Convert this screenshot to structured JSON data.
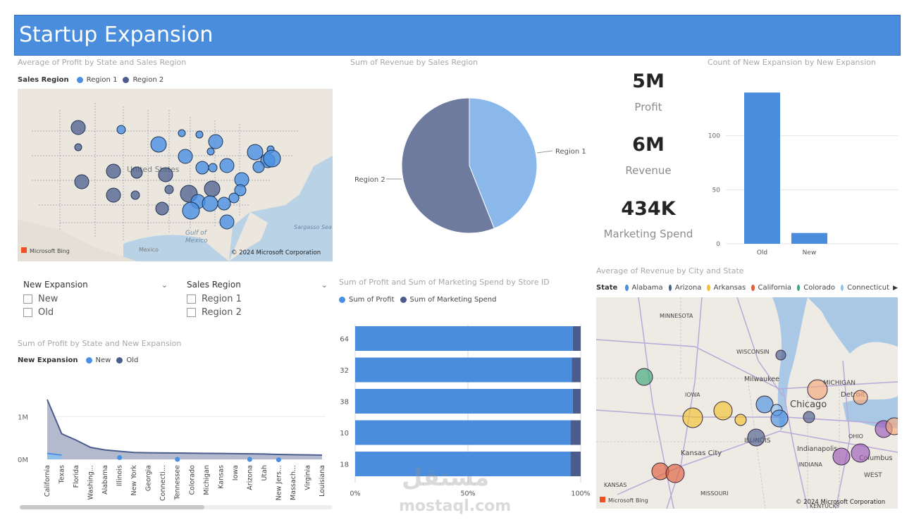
{
  "header": {
    "title": "Startup Expansion"
  },
  "map1": {
    "title": "Average of Profit by State and Sales Region",
    "legend_title": "Sales Region",
    "legend": [
      {
        "name": "Region 1",
        "color": "#4a90e2"
      },
      {
        "name": "Region 2",
        "color": "#4b5d8c"
      }
    ],
    "labels": {
      "country": "United States",
      "gulf": "Gulf of\nMexico",
      "sea": "Sargasso Sea",
      "mexico": "Mexico"
    },
    "bing": "Microsoft Bing",
    "copyright": "© 2024 Microsoft Corporation"
  },
  "pie": {
    "title": "Sum of Revenue by Sales Region",
    "label1": "Region 1",
    "label2": "Region 2"
  },
  "cards": [
    {
      "value": "5M",
      "label": "Profit"
    },
    {
      "value": "6M",
      "label": "Revenue"
    },
    {
      "value": "434K",
      "label": "Marketing Spend"
    }
  ],
  "colchart": {
    "title": "Count of New Expansion by New Expansion"
  },
  "slicers": {
    "expansion": {
      "title": "New Expansion",
      "items": [
        "New",
        "Old"
      ]
    },
    "region": {
      "title": "Sales Region",
      "items": [
        "Region 1",
        "Region 2"
      ]
    }
  },
  "area": {
    "title": "Sum of Profit by State and New Expansion",
    "legend_title": "New Expansion",
    "legend": [
      {
        "name": "New",
        "color": "#4a90e2"
      },
      {
        "name": "Old",
        "color": "#4b5d8c"
      }
    ]
  },
  "stacked": {
    "title": "Sum of Profit and Sum of Marketing Spend by Store ID",
    "legend": [
      {
        "name": "Sum of Profit",
        "color": "#4a90e2"
      },
      {
        "name": "Sum of Marketing Spend",
        "color": "#4b5d8c"
      }
    ]
  },
  "map2": {
    "title": "Average of Revenue by City and State",
    "legend_title": "State",
    "legend": [
      {
        "name": "Alabama",
        "color": "#4a90e2"
      },
      {
        "name": "Arizona",
        "color": "#4b5d8c"
      },
      {
        "name": "Arkansas",
        "color": "#f2c12e"
      },
      {
        "name": "California",
        "color": "#e0603a"
      },
      {
        "name": "Colorado",
        "color": "#3aa876"
      },
      {
        "name": "Connecticut",
        "color": "#8cc4f0"
      }
    ],
    "places": [
      "MINNESOTA",
      "WISCONSIN",
      "MICHIGAN",
      "IOWA",
      "Milwaukee",
      "Chicago",
      "Detroit",
      "ILLINOIS",
      "OHIO",
      "Indianapolis",
      "INDIANA",
      "Columbus",
      "Kansas City",
      "KANSAS",
      "MISSOURI",
      "KENTUCKY",
      "WEST"
    ],
    "bing": "Microsoft Bing",
    "copyright": "© 2024 Microsoft Corporation"
  },
  "watermark": {
    "arabic": "مستقل",
    "latin": "mostaql.com"
  },
  "chart_data": [
    {
      "type": "pie",
      "title": "Sum of Revenue by Sales Region",
      "categories": [
        "Region 1",
        "Region 2"
      ],
      "values": [
        44,
        56
      ],
      "colors": [
        "#8ab8ea",
        "#6e7b9e"
      ]
    },
    {
      "type": "bar",
      "title": "Count of New Expansion by New Expansion",
      "categories": [
        "Old",
        "New"
      ],
      "values": [
        140,
        10
      ],
      "ylim": [
        0,
        150
      ],
      "yticks": [
        0,
        50,
        100
      ],
      "color": "#4a8ddc"
    },
    {
      "type": "area",
      "title": "Sum of Profit by State and New Expansion",
      "categories": [
        "California",
        "Texas",
        "Florida",
        "Washing...",
        "Alabama",
        "Illinois",
        "New York",
        "Georgia",
        "Connecti...",
        "Tennessee",
        "Colorado",
        "Michigan",
        "Kansas",
        "Iowa",
        "Arizona",
        "Utah",
        "New Jers...",
        "Massach...",
        "Virginia",
        "Louisiana"
      ],
      "series": [
        {
          "name": "Old",
          "values": [
            1400000,
            600000,
            450000,
            280000,
            220000,
            190000,
            160000,
            155000,
            150000,
            148000,
            145000,
            140000,
            138000,
            135000,
            130000,
            125000,
            115000,
            110000,
            105000,
            100000
          ]
        },
        {
          "name": "New",
          "values": [
            140000,
            100000,
            0,
            0,
            0,
            90000,
            0,
            0,
            0,
            50000,
            0,
            0,
            0,
            0,
            50000,
            0,
            40000,
            0,
            0,
            0
          ]
        }
      ],
      "yticks": [
        "0M",
        "1M"
      ],
      "ylim": [
        0,
        1600000
      ]
    },
    {
      "type": "bar",
      "orientation": "horizontal-100%-stacked",
      "title": "Sum of Profit and Sum of Marketing Spend by Store ID",
      "categories": [
        "64",
        "32",
        "38",
        "10",
        "18"
      ],
      "series": [
        {
          "name": "Sum of Profit",
          "values": [
            96.5,
            96,
            96.5,
            95.5,
            95.5
          ]
        },
        {
          "name": "Sum of Marketing Spend",
          "values": [
            3.5,
            4,
            3.5,
            4.5,
            4.5
          ]
        }
      ],
      "xticks": [
        "0%",
        "50%",
        "100%"
      ]
    }
  ]
}
